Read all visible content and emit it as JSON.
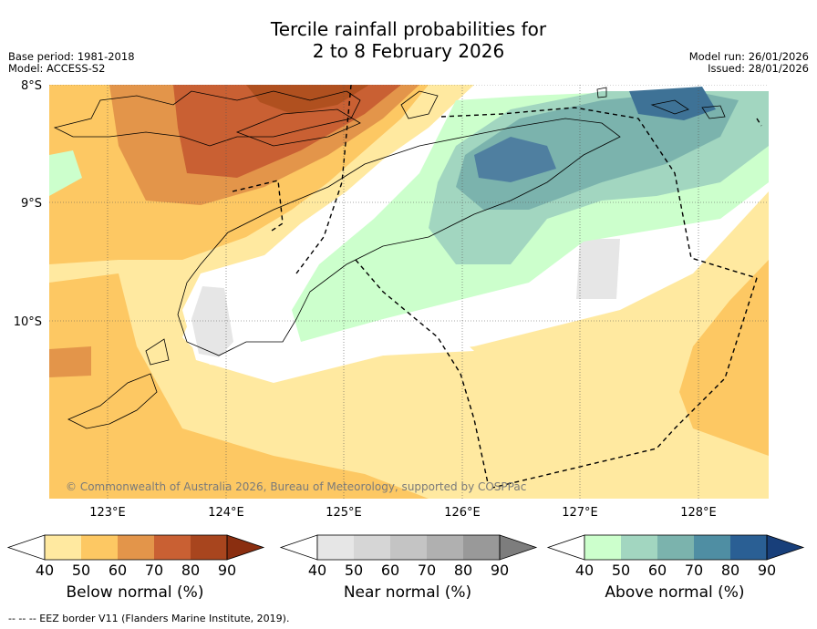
{
  "header": {
    "title_line1": "Tercile rainfall probabilities for",
    "title_line2": "2 to 8 February 2026",
    "base_period": "Base period: 1981-2018",
    "model": "Model: ACCESS-S2",
    "model_run": "Model run: 26/01/2026",
    "issued": "Issued: 28/01/2026"
  },
  "map": {
    "lat_labels": [
      "8°S",
      "9°S",
      "10°S"
    ],
    "lon_labels": [
      "123°E",
      "124°E",
      "125°E",
      "126°E",
      "127°E",
      "128°E"
    ],
    "copyright": "© Commonwealth of Australia 2026, Bureau of Meteorology, supported by COSPPac"
  },
  "colorbars": [
    {
      "label": "Below normal (%)",
      "ticks": [
        "40",
        "50",
        "60",
        "70",
        "80",
        "90"
      ],
      "colors": [
        "#ffe9a0",
        "#fdc863",
        "#e3954a",
        "#c96033",
        "#a8451e"
      ],
      "tail": "#8a2e10"
    },
    {
      "label": "Near normal (%)",
      "ticks": [
        "40",
        "50",
        "60",
        "70",
        "80",
        "90"
      ],
      "colors": [
        "#e6e6e6",
        "#d6d6d6",
        "#c4c4c4",
        "#b0b0b0",
        "#999999"
      ],
      "tail": "#7d7d7d"
    },
    {
      "label": "Above normal (%)",
      "ticks": [
        "40",
        "50",
        "60",
        "70",
        "80",
        "90"
      ],
      "colors": [
        "#ccffcc",
        "#a2d6c0",
        "#7bb3ad",
        "#4f8ea3",
        "#2a5f94"
      ],
      "tail": "#183f7a"
    }
  ],
  "footer": "--  --  -- EEZ border V11 (Flanders Marine Institute, 2019)."
}
